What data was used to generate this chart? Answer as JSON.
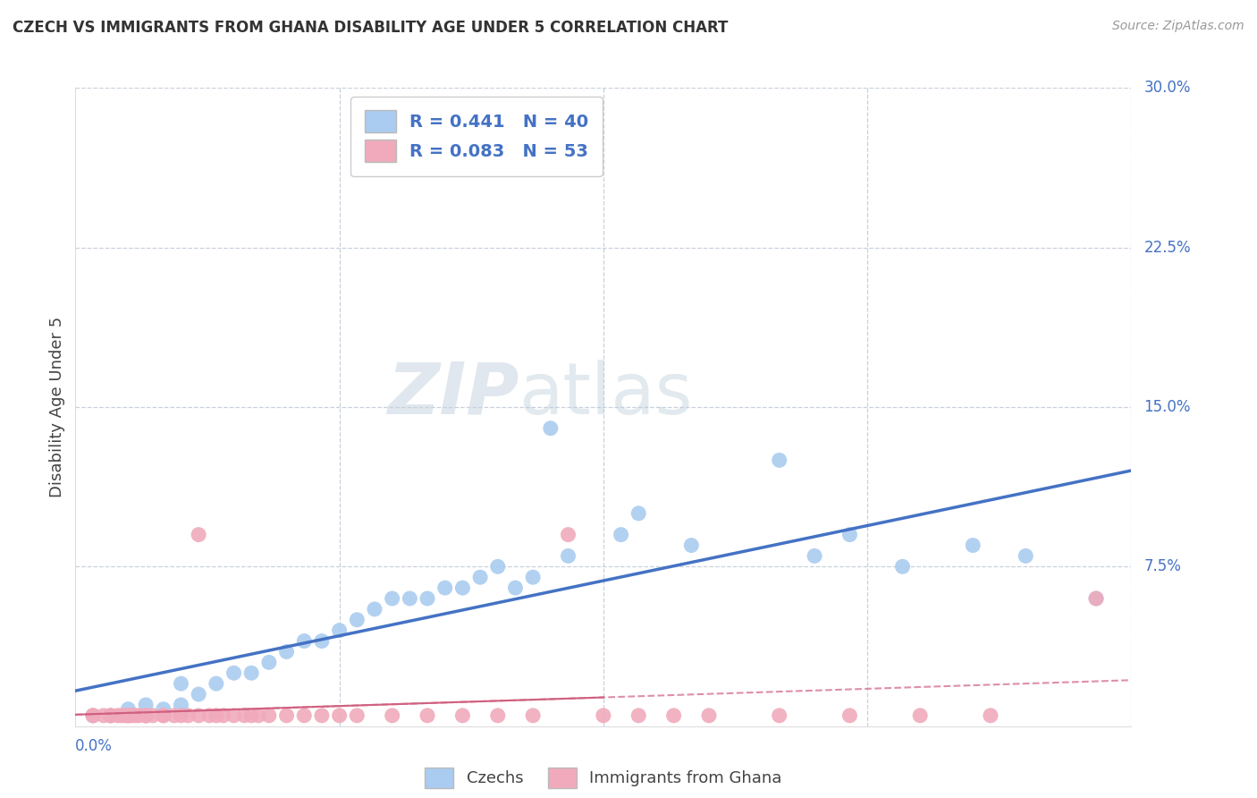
{
  "title": "CZECH VS IMMIGRANTS FROM GHANA DISABILITY AGE UNDER 5 CORRELATION CHART",
  "source": "Source: ZipAtlas.com",
  "ylabel": "Disability Age Under 5",
  "R_czech": 0.441,
  "N_czech": 40,
  "R_ghana": 0.083,
  "N_ghana": 53,
  "czech_color": "#aaccf0",
  "ghana_color": "#f0aabb",
  "czech_line_color": "#4472c4",
  "ghana_line_color": "#d06080",
  "background_color": "#ffffff",
  "grid_color": "#c8d0dc",
  "watermark_zip": "ZIP",
  "watermark_atlas": "atlas",
  "xlim": [
    0.0,
    0.3
  ],
  "ylim": [
    0.0,
    0.3
  ],
  "czech_x": [
    0.005,
    0.01,
    0.015,
    0.02,
    0.02,
    0.025,
    0.03,
    0.03,
    0.035,
    0.04,
    0.045,
    0.05,
    0.055,
    0.06,
    0.065,
    0.07,
    0.075,
    0.08,
    0.085,
    0.09,
    0.095,
    0.1,
    0.105,
    0.11,
    0.115,
    0.12,
    0.125,
    0.13,
    0.135,
    0.14,
    0.155,
    0.16,
    0.175,
    0.2,
    0.21,
    0.22,
    0.235,
    0.255,
    0.27,
    0.29
  ],
  "czech_y": [
    0.005,
    0.005,
    0.008,
    0.005,
    0.01,
    0.008,
    0.01,
    0.02,
    0.015,
    0.02,
    0.025,
    0.025,
    0.03,
    0.035,
    0.04,
    0.04,
    0.045,
    0.05,
    0.055,
    0.06,
    0.06,
    0.06,
    0.065,
    0.065,
    0.07,
    0.075,
    0.065,
    0.07,
    0.14,
    0.08,
    0.09,
    0.1,
    0.085,
    0.125,
    0.08,
    0.09,
    0.075,
    0.085,
    0.08,
    0.06
  ],
  "ghana_x": [
    0.005,
    0.005,
    0.008,
    0.01,
    0.01,
    0.012,
    0.013,
    0.014,
    0.015,
    0.015,
    0.015,
    0.016,
    0.017,
    0.018,
    0.02,
    0.02,
    0.02,
    0.022,
    0.025,
    0.025,
    0.028,
    0.03,
    0.032,
    0.035,
    0.035,
    0.038,
    0.04,
    0.042,
    0.045,
    0.048,
    0.05,
    0.052,
    0.055,
    0.06,
    0.065,
    0.07,
    0.075,
    0.08,
    0.09,
    0.1,
    0.11,
    0.12,
    0.13,
    0.14,
    0.15,
    0.16,
    0.17,
    0.18,
    0.2,
    0.22,
    0.24,
    0.26,
    0.29
  ],
  "ghana_y": [
    0.005,
    0.005,
    0.005,
    0.005,
    0.005,
    0.005,
    0.005,
    0.005,
    0.005,
    0.005,
    0.005,
    0.005,
    0.005,
    0.005,
    0.005,
    0.005,
    0.005,
    0.005,
    0.005,
    0.005,
    0.005,
    0.005,
    0.005,
    0.005,
    0.09,
    0.005,
    0.005,
    0.005,
    0.005,
    0.005,
    0.005,
    0.005,
    0.005,
    0.005,
    0.005,
    0.005,
    0.005,
    0.005,
    0.005,
    0.005,
    0.005,
    0.005,
    0.005,
    0.09,
    0.005,
    0.005,
    0.005,
    0.005,
    0.005,
    0.005,
    0.005,
    0.005,
    0.06
  ]
}
